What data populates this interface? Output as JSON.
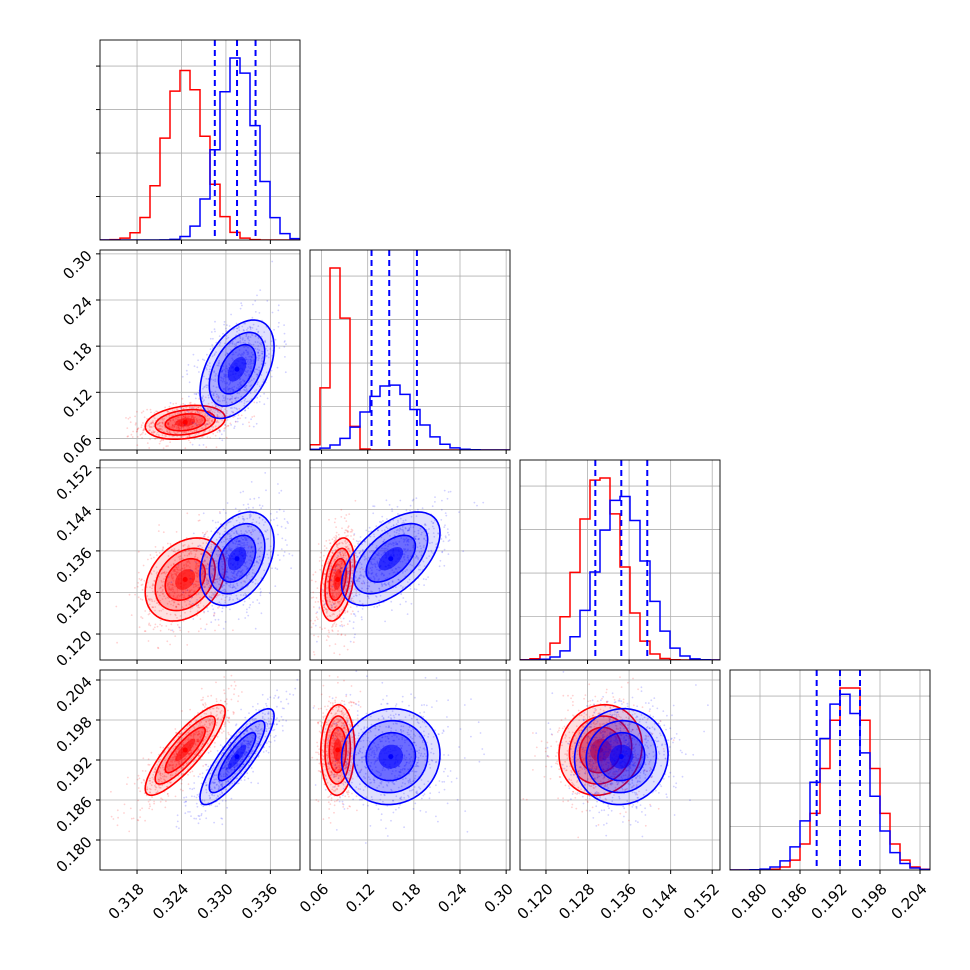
{
  "chart_data": {
    "type": "corner",
    "grid": true,
    "parameters": [
      {
        "ticks": [
          0.318,
          0.324,
          0.33,
          0.336
        ],
        "tick_labels": [
          "0.318",
          "0.324",
          "0.330",
          "0.336"
        ],
        "range": [
          0.313,
          0.34
        ]
      },
      {
        "ticks": [
          0.06,
          0.12,
          0.18,
          0.24,
          0.3
        ],
        "tick_labels": [
          "0.06",
          "0.12",
          "0.18",
          "0.24",
          "0.30"
        ],
        "range": [
          0.045,
          0.305
        ]
      },
      {
        "ticks": [
          0.12,
          0.128,
          0.136,
          0.144,
          0.152
        ],
        "tick_labels": [
          "0.120",
          "0.128",
          "0.136",
          "0.144",
          "0.152"
        ],
        "range": [
          0.115,
          0.1535
        ]
      },
      {
        "ticks": [
          0.18,
          0.186,
          0.192,
          0.198,
          0.204
        ],
        "tick_labels": [
          "0.180",
          "0.186",
          "0.192",
          "0.198",
          "0.204"
        ],
        "range": [
          0.1755,
          0.2055
        ]
      }
    ],
    "series": [
      {
        "color": "#ff0000",
        "mean": [
          0.3245,
          0.081,
          0.1305,
          0.1935
        ],
        "sd": [
          0.0027,
          0.011,
          0.004,
          0.0034
        ],
        "corr": [
          [
            0,
            1,
            0.25
          ],
          [
            0,
            2,
            0.3
          ],
          [
            0,
            3,
            0.85
          ],
          [
            1,
            2,
            0.35
          ],
          [
            1,
            3,
            0.05
          ],
          [
            2,
            3,
            0.1
          ]
        ]
      },
      {
        "color": "#0000ff",
        "mean": [
          0.3315,
          0.15,
          0.1345,
          0.1925
        ],
        "sd": [
          0.0025,
          0.032,
          0.0045,
          0.0036
        ],
        "corr": [
          [
            0,
            1,
            0.45
          ],
          [
            0,
            2,
            0.35
          ],
          [
            0,
            3,
            0.85
          ],
          [
            1,
            2,
            0.55
          ],
          [
            1,
            3,
            0.05
          ],
          [
            2,
            3,
            0.05
          ]
        ]
      }
    ],
    "quantile_lines": {
      "color": "#0000ff",
      "style": "dashed",
      "values": [
        [
          0.3285,
          0.3315,
          0.334
        ],
        [
          0.125,
          0.148,
          0.184
        ],
        [
          0.1295,
          0.1345,
          0.1395
        ],
        [
          0.1885,
          0.192,
          0.195
        ]
      ]
    }
  }
}
